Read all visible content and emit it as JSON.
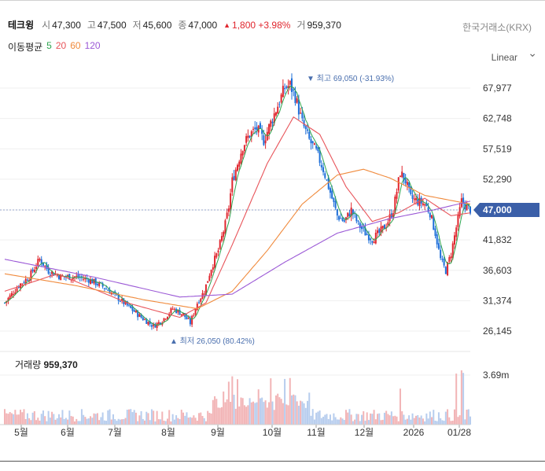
{
  "header": {
    "name": "테크윙",
    "open_label": "시",
    "open": "47,300",
    "high_label": "고",
    "high": "47,500",
    "low_label": "저",
    "low": "45,600",
    "close_label": "종",
    "close": "47,000",
    "change_arrow": "▲",
    "change": "1,800 +3.98%",
    "volume_label": "거",
    "volume": "959,370",
    "exchange": "한국거래소(KRX)"
  },
  "ma_legend": {
    "title": "이동평균",
    "items": [
      {
        "label": "5",
        "color": "#2ea44f"
      },
      {
        "label": "20",
        "color": "#e8545a"
      },
      {
        "label": "60",
        "color": "#f08a3c"
      },
      {
        "label": "120",
        "color": "#9b59d6"
      }
    ]
  },
  "scale_selector": {
    "label": "Linear",
    "icon": "chevron-down-icon"
  },
  "price_axis": {
    "ticks": [
      "67,977",
      "62,748",
      "57,519",
      "52,290",
      "41,832",
      "36,603",
      "31,374",
      "26,145"
    ],
    "current_price_badge": "47,000"
  },
  "annotations": {
    "high": "▼ 최고 69,050 (-31.93%)",
    "low": "▲ 최저 26,050 (80.42%)"
  },
  "volume": {
    "label": "거래량",
    "value": "959,370",
    "axis_tick": "3.69m"
  },
  "x_axis": {
    "labels": [
      "5월",
      "6월",
      "7월",
      "8월",
      "9월",
      "10월",
      "11월",
      "12월",
      "2026",
      "01/28"
    ]
  },
  "colors": {
    "up": "#e0262e",
    "down": "#1e6fd9",
    "badge": "#3b5fa8",
    "grid": "#efefef"
  },
  "chart_data": {
    "type": "candlestick",
    "y_range": [
      23000,
      72000
    ],
    "x_ticks": [
      "5월",
      "6월",
      "7월",
      "8월",
      "9월",
      "10월",
      "11월",
      "12월",
      "2026",
      "01/28"
    ],
    "price_path": [
      [
        0,
        31000
      ],
      [
        8,
        34000
      ],
      [
        14,
        35500
      ],
      [
        20,
        38500
      ],
      [
        25,
        36500
      ],
      [
        32,
        35500
      ],
      [
        40,
        35500
      ],
      [
        48,
        35000
      ],
      [
        55,
        34000
      ],
      [
        60,
        33000
      ],
      [
        66,
        31500
      ],
      [
        72,
        30000
      ],
      [
        78,
        28500
      ],
      [
        85,
        27000
      ],
      [
        90,
        28000
      ],
      [
        96,
        30000
      ],
      [
        102,
        29000
      ],
      [
        106,
        27500
      ],
      [
        110,
        31000
      ],
      [
        114,
        33000
      ],
      [
        118,
        37000
      ],
      [
        122,
        40000
      ],
      [
        126,
        44500
      ],
      [
        128,
        47500
      ],
      [
        130,
        52000
      ],
      [
        133,
        55000
      ],
      [
        136,
        58000
      ],
      [
        140,
        60000
      ],
      [
        144,
        61000
      ],
      [
        148,
        59000
      ],
      [
        152,
        62000
      ],
      [
        156,
        65000
      ],
      [
        160,
        68000
      ],
      [
        163,
        68500
      ],
      [
        166,
        66500
      ],
      [
        170,
        62000
      ],
      [
        174,
        59000
      ],
      [
        178,
        57000
      ],
      [
        182,
        54000
      ],
      [
        186,
        50000
      ],
      [
        190,
        46000
      ],
      [
        194,
        45000
      ],
      [
        198,
        47000
      ],
      [
        202,
        44500
      ],
      [
        206,
        43000
      ],
      [
        210,
        42000
      ],
      [
        214,
        43000
      ],
      [
        218,
        44500
      ],
      [
        222,
        47000
      ],
      [
        226,
        53500
      ],
      [
        229,
        52000
      ],
      [
        232,
        49000
      ],
      [
        236,
        48500
      ],
      [
        240,
        48000
      ],
      [
        243,
        46500
      ],
      [
        246,
        43000
      ],
      [
        249,
        38500
      ],
      [
        252,
        36500
      ],
      [
        255,
        39500
      ],
      [
        258,
        44000
      ],
      [
        261,
        48500
      ],
      [
        264,
        47500
      ],
      [
        266,
        47000
      ]
    ],
    "moving_averages": {
      "ma5": "follows price closely",
      "ma20": [
        [
          0,
          33000
        ],
        [
          30,
          36000
        ],
        [
          70,
          31000
        ],
        [
          100,
          28500
        ],
        [
          115,
          31000
        ],
        [
          130,
          41000
        ],
        [
          150,
          55000
        ],
        [
          165,
          63000
        ],
        [
          180,
          60000
        ],
        [
          195,
          51000
        ],
        [
          210,
          45000
        ],
        [
          225,
          46500
        ],
        [
          240,
          49000
        ],
        [
          255,
          46000
        ],
        [
          266,
          46500
        ]
      ],
      "ma60": [
        [
          0,
          36000
        ],
        [
          40,
          34000
        ],
        [
          80,
          31500
        ],
        [
          110,
          30000
        ],
        [
          130,
          33000
        ],
        [
          150,
          40000
        ],
        [
          170,
          48000
        ],
        [
          190,
          53000
        ],
        [
          205,
          54000
        ],
        [
          220,
          52500
        ],
        [
          240,
          49500
        ],
        [
          266,
          48000
        ]
      ],
      "ma120": [
        [
          0,
          38500
        ],
        [
          50,
          35500
        ],
        [
          100,
          32000
        ],
        [
          130,
          32500
        ],
        [
          160,
          38000
        ],
        [
          190,
          43000
        ],
        [
          220,
          45500
        ],
        [
          245,
          47000
        ],
        [
          266,
          48500
        ]
      ]
    },
    "volume_axis_max": "3.69m",
    "annotations": {
      "max": {
        "price": 69050,
        "text": "최고 69,050 (-31.93%)"
      },
      "min": {
        "price": 26050,
        "text": "최저 26,050 (80.42%)"
      }
    }
  }
}
